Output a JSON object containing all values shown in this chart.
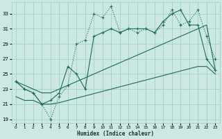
{
  "xlabel": "Humidex (Indice chaleur)",
  "bg_color": "#cce8e2",
  "grid_color": "#99ccc2",
  "line_color": "#1a6b5a",
  "xlim": [
    -0.5,
    23.5
  ],
  "ylim": [
    18.5,
    34.5
  ],
  "xticks": [
    0,
    1,
    2,
    3,
    4,
    5,
    6,
    7,
    8,
    9,
    10,
    11,
    12,
    13,
    14,
    15,
    16,
    17,
    18,
    19,
    20,
    21,
    22,
    23
  ],
  "yticks": [
    19,
    21,
    23,
    25,
    27,
    29,
    31,
    33
  ],
  "line1_y": [
    24.0,
    23.0,
    22.5,
    21.0,
    19.0,
    22.0,
    23.5,
    29.0,
    29.5,
    33.0,
    32.5,
    34.0,
    30.5,
    31.0,
    30.5,
    31.0,
    30.5,
    31.5,
    33.5,
    31.5,
    32.0,
    33.5,
    30.0,
    27.0
  ],
  "line2_y": [
    24.0,
    23.0,
    22.5,
    21.0,
    21.5,
    22.5,
    26.0,
    25.0,
    23.0,
    30.0,
    30.5,
    31.0,
    30.5,
    31.0,
    31.0,
    31.0,
    30.5,
    32.0,
    33.0,
    33.5,
    31.5,
    31.5,
    27.0,
    25.5
  ],
  "line3_y": [
    24.0,
    23.5,
    23.0,
    22.5,
    22.5,
    23.0,
    23.5,
    24.0,
    24.5,
    25.0,
    25.5,
    26.0,
    26.5,
    27.0,
    27.5,
    28.0,
    28.5,
    29.0,
    29.5,
    30.0,
    30.5,
    31.0,
    31.5,
    25.5
  ],
  "line4_y": [
    22.0,
    21.5,
    21.5,
    21.0,
    21.0,
    21.2,
    21.5,
    21.8,
    22.1,
    22.4,
    22.7,
    23.0,
    23.3,
    23.6,
    23.9,
    24.2,
    24.5,
    24.8,
    25.1,
    25.4,
    25.7,
    26.0,
    26.0,
    25.0
  ]
}
